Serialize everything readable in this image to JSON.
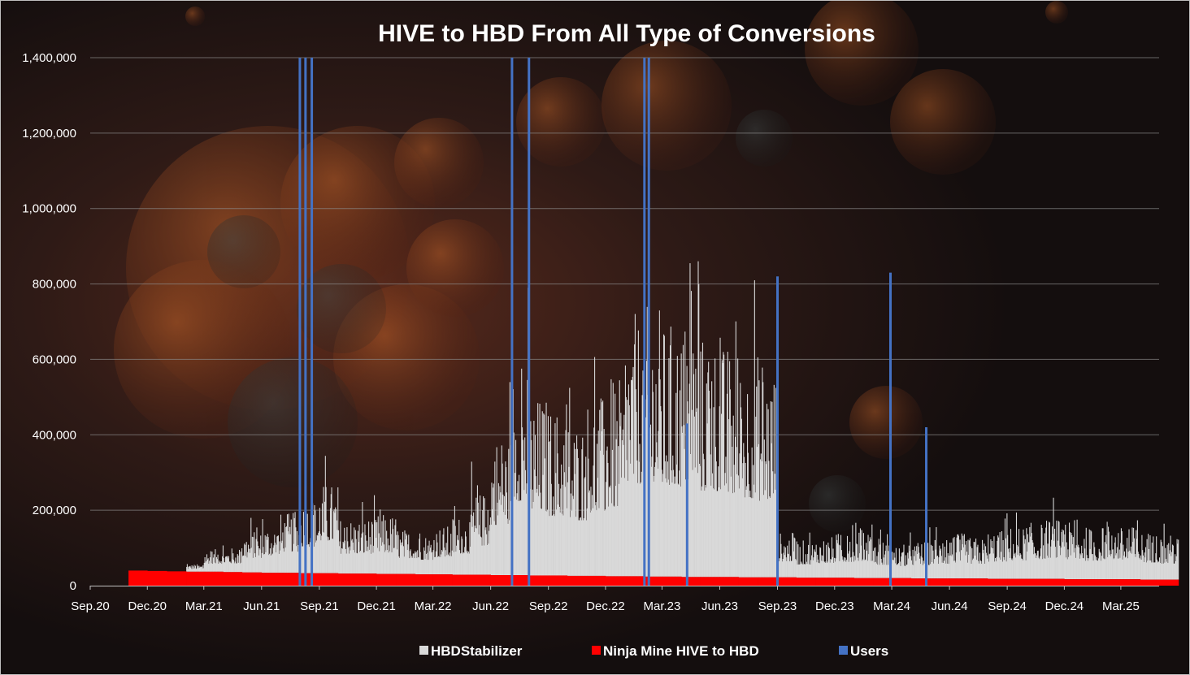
{
  "chart_data": {
    "type": "bar",
    "title": "HIVE to HBD From All Type of Conversions",
    "xlabel": "",
    "ylabel": "",
    "ylim": [
      0,
      1400000
    ],
    "yticks": [
      0,
      200000,
      400000,
      600000,
      800000,
      1000000,
      1200000,
      1400000
    ],
    "ytick_labels": [
      "0",
      "200,000",
      "400,000",
      "600,000",
      "800,000",
      "1,000,000",
      "1,200,000",
      "1,400,000"
    ],
    "xticks": [
      "Sep.20",
      "Dec.20",
      "Mar.21",
      "Jun.21",
      "Sep.21",
      "Dec.21",
      "Mar.22",
      "Jun.22",
      "Sep.22",
      "Dec.22",
      "Mar.23",
      "Jun.23",
      "Sep.23",
      "Dec.23",
      "Mar.24",
      "Jun.24",
      "Sep.24",
      "Dec.24",
      "Mar.25"
    ],
    "grid": true,
    "legend_position": "bottom",
    "stacked": true,
    "series": [
      {
        "name": "HBDStabilizer",
        "color": "#d9d9d9",
        "note_values": "monthly envelope of daily values (approximate)",
        "values": [
          0,
          0,
          0,
          0,
          0,
          20000,
          60000,
          65000,
          110000,
          130000,
          160000,
          200000,
          240000,
          150000,
          150000,
          160000,
          120000,
          110000,
          130000,
          160000,
          220000,
          380000,
          560000,
          480000,
          450000,
          420000,
          480000,
          520000,
          700000,
          720000,
          680000,
          700000,
          650000,
          620000,
          600000,
          580000,
          120000,
          100000,
          110000,
          120000,
          130000,
          100000,
          90000,
          100000,
          110000,
          120000,
          110000,
          130000,
          140000,
          150000,
          160000,
          150000,
          140000,
          150000,
          140000,
          130000,
          120000
        ]
      },
      {
        "name": "Ninja Mine HIVE to HBD",
        "color": "#ff0000",
        "values": [
          0,
          0,
          40000,
          39000,
          38000,
          37000,
          37000,
          36000,
          35000,
          34000,
          34000,
          33000,
          33000,
          32000,
          32000,
          31000,
          31000,
          30000,
          30000,
          29000,
          29000,
          28000,
          28000,
          27000,
          27000,
          26000,
          26000,
          25000,
          25000,
          24000,
          24000,
          23000,
          23000,
          23000,
          22000,
          22000,
          22000,
          21000,
          21000,
          21000,
          20000,
          20000,
          20000,
          19000,
          19000,
          19000,
          19000,
          18000,
          18000,
          18000,
          18000,
          17000,
          17000,
          17000,
          17000,
          16000,
          16000
        ]
      },
      {
        "name": "Users",
        "color": "#4472c4",
        "spikes": [
          {
            "date": "2021-08-01",
            "value": 1400000
          },
          {
            "date": "2021-08-10",
            "value": 1400000
          },
          {
            "date": "2021-08-20",
            "value": 1400000
          },
          {
            "date": "2022-07-05",
            "value": 1400000
          },
          {
            "date": "2022-08-01",
            "value": 1400000
          },
          {
            "date": "2023-02-01",
            "value": 1400000
          },
          {
            "date": "2023-02-08",
            "value": 1400000
          },
          {
            "date": "2023-04-10",
            "value": 430000
          },
          {
            "date": "2023-09-01",
            "value": 820000
          },
          {
            "date": "2024-02-28",
            "value": 830000
          },
          {
            "date": "2024-04-25",
            "value": 420000
          }
        ]
      }
    ]
  }
}
